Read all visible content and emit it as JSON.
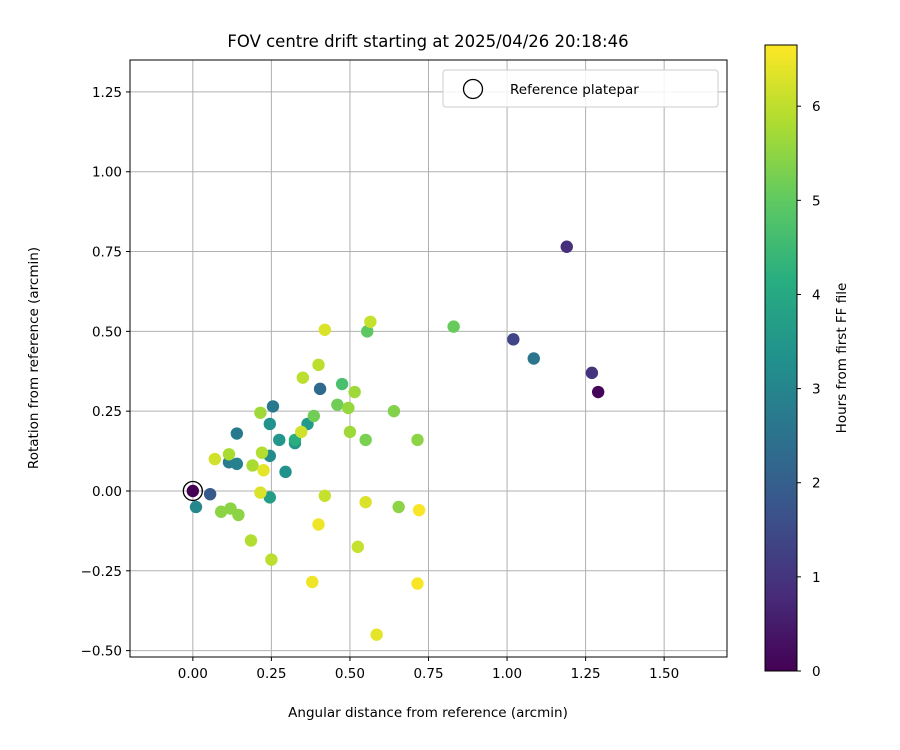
{
  "chart_data": {
    "type": "scatter",
    "title": "FOV centre drift starting at 2025/04/26 20:18:46",
    "xlabel": "Angular distance from reference (arcmin)",
    "ylabel": "Rotation from reference (arcmin)",
    "xlim": [
      -0.2,
      1.7
    ],
    "ylim": [
      -0.52,
      1.35
    ],
    "x_ticks": [
      0.0,
      0.25,
      0.5,
      0.75,
      1.0,
      1.25,
      1.5
    ],
    "x_tick_labels": [
      "0.00",
      "0.25",
      "0.50",
      "0.75",
      "1.00",
      "1.25",
      "1.50"
    ],
    "y_ticks": [
      -0.5,
      -0.25,
      0.0,
      0.25,
      0.5,
      0.75,
      1.0,
      1.25
    ],
    "y_tick_labels": [
      "−0.50",
      "−0.25",
      "0.00",
      "0.25",
      "0.50",
      "0.75",
      "1.00",
      "1.25"
    ],
    "grid": true,
    "legend": {
      "placement": "top-right",
      "entries": [
        "Reference platepar"
      ]
    },
    "reference_point": {
      "x": 0.0,
      "y": 0.0
    },
    "colorbar": {
      "label": "Hours from first FF file",
      "colormap": "viridis",
      "range": [
        0,
        6.65
      ],
      "ticks": [
        0,
        1,
        2,
        3,
        4,
        5,
        6
      ],
      "tick_labels": [
        "0",
        "1",
        "2",
        "3",
        "4",
        "5",
        "6"
      ]
    },
    "points": [
      {
        "x": 0.0,
        "y": 0.0,
        "h": 0.0
      },
      {
        "x": 1.29,
        "y": 0.31,
        "h": 0.1
      },
      {
        "x": 1.19,
        "y": 0.765,
        "h": 0.9
      },
      {
        "x": 1.27,
        "y": 0.37,
        "h": 1.0
      },
      {
        "x": 1.02,
        "y": 0.475,
        "h": 1.4
      },
      {
        "x": 0.055,
        "y": -0.01,
        "h": 1.9
      },
      {
        "x": 0.405,
        "y": 0.32,
        "h": 2.3
      },
      {
        "x": 1.085,
        "y": 0.415,
        "h": 2.6
      },
      {
        "x": 0.255,
        "y": 0.265,
        "h": 2.7
      },
      {
        "x": 0.14,
        "y": 0.18,
        "h": 2.7
      },
      {
        "x": 0.115,
        "y": 0.09,
        "h": 2.8
      },
      {
        "x": 0.14,
        "y": 0.085,
        "h": 2.9
      },
      {
        "x": 0.01,
        "y": -0.05,
        "h": 3.1
      },
      {
        "x": 0.245,
        "y": 0.11,
        "h": 3.2
      },
      {
        "x": 0.295,
        "y": 0.06,
        "h": 3.4
      },
      {
        "x": 0.325,
        "y": 0.15,
        "h": 3.5
      },
      {
        "x": 0.245,
        "y": 0.21,
        "h": 3.4
      },
      {
        "x": 0.275,
        "y": 0.16,
        "h": 3.5
      },
      {
        "x": 0.365,
        "y": 0.21,
        "h": 3.6
      },
      {
        "x": 0.245,
        "y": -0.02,
        "h": 3.7
      },
      {
        "x": 0.325,
        "y": 0.16,
        "h": 4.2
      },
      {
        "x": 0.475,
        "y": 0.335,
        "h": 4.7
      },
      {
        "x": 0.555,
        "y": 0.5,
        "h": 5.0
      },
      {
        "x": 0.83,
        "y": 0.515,
        "h": 5.1
      },
      {
        "x": 0.385,
        "y": 0.235,
        "h": 5.2
      },
      {
        "x": 0.46,
        "y": 0.27,
        "h": 5.2
      },
      {
        "x": 0.55,
        "y": 0.16,
        "h": 5.3
      },
      {
        "x": 0.64,
        "y": 0.25,
        "h": 5.4
      },
      {
        "x": 0.655,
        "y": -0.05,
        "h": 5.5
      },
      {
        "x": 0.715,
        "y": 0.16,
        "h": 5.5
      },
      {
        "x": 0.12,
        "y": -0.055,
        "h": 5.5
      },
      {
        "x": 0.145,
        "y": -0.075,
        "h": 5.5
      },
      {
        "x": 0.09,
        "y": -0.065,
        "h": 5.5
      },
      {
        "x": 0.495,
        "y": 0.26,
        "h": 5.6
      },
      {
        "x": 0.515,
        "y": 0.31,
        "h": 5.7
      },
      {
        "x": 0.5,
        "y": 0.185,
        "h": 5.7
      },
      {
        "x": 0.215,
        "y": 0.245,
        "h": 5.7
      },
      {
        "x": 0.115,
        "y": 0.115,
        "h": 5.8
      },
      {
        "x": 0.19,
        "y": 0.08,
        "h": 5.8
      },
      {
        "x": 0.185,
        "y": -0.155,
        "h": 5.9
      },
      {
        "x": 0.22,
        "y": 0.12,
        "h": 5.9
      },
      {
        "x": 0.25,
        "y": -0.215,
        "h": 6.0
      },
      {
        "x": 0.35,
        "y": 0.355,
        "h": 6.0
      },
      {
        "x": 0.4,
        "y": 0.395,
        "h": 6.0
      },
      {
        "x": 0.525,
        "y": -0.175,
        "h": 6.1
      },
      {
        "x": 0.42,
        "y": -0.015,
        "h": 6.1
      },
      {
        "x": 0.565,
        "y": 0.53,
        "h": 6.1
      },
      {
        "x": 0.07,
        "y": 0.1,
        "h": 6.2
      },
      {
        "x": 0.345,
        "y": 0.185,
        "h": 6.2
      },
      {
        "x": 0.42,
        "y": 0.505,
        "h": 6.3
      },
      {
        "x": 0.215,
        "y": -0.005,
        "h": 6.3
      },
      {
        "x": 0.55,
        "y": -0.035,
        "h": 6.3
      },
      {
        "x": 0.225,
        "y": 0.065,
        "h": 6.4
      },
      {
        "x": 0.585,
        "y": -0.45,
        "h": 6.4
      },
      {
        "x": 0.38,
        "y": -0.285,
        "h": 6.5
      },
      {
        "x": 0.4,
        "y": -0.105,
        "h": 6.5
      },
      {
        "x": 0.715,
        "y": -0.29,
        "h": 6.6
      },
      {
        "x": 0.72,
        "y": -0.06,
        "h": 6.6
      }
    ]
  }
}
